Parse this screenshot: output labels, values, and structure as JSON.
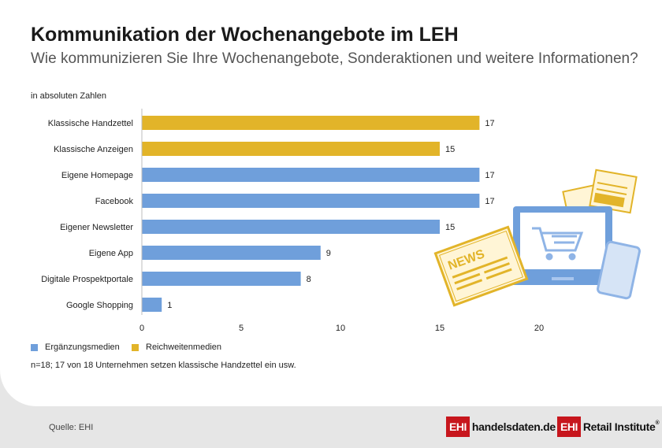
{
  "header": {
    "title": "Kommunikation der Wochenangebote im LEH",
    "subtitle": "Wie kommunizieren Sie Ihre Wochenangebote, Sonderaktionen und weitere Informationen?",
    "unit_label": "in absoluten Zahlen"
  },
  "chart_data": {
    "type": "bar",
    "orientation": "horizontal",
    "categories": [
      "Klassische Handzettel",
      "Klassische Anzeigen",
      "Eigene Homepage",
      "Facebook",
      "Eigener Newsletter",
      "Eigene App",
      "Digitale Prospektportale",
      "Google Shopping"
    ],
    "values": [
      17,
      15,
      17,
      17,
      15,
      9,
      8,
      1
    ],
    "groups": [
      "Reichweitenmedien",
      "Reichweitenmedien",
      "Ergänzungsmedien",
      "Ergänzungsmedien",
      "Ergänzungsmedien",
      "Ergänzungsmedien",
      "Ergänzungsmedien",
      "Ergänzungsmedien"
    ],
    "legend": [
      {
        "name": "Ergänzungsmedien",
        "color": "#6f9fdb"
      },
      {
        "name": "Reichweitenmedien",
        "color": "#e2b429"
      }
    ],
    "xlim": [
      0,
      20
    ],
    "xticks": [
      0,
      5,
      10,
      15,
      20
    ],
    "grid": false,
    "legend_position": "bottom-left"
  },
  "footer": {
    "note": "n=18; 17 von 18 Unternehmen setzen klassische Handzettel ein usw.",
    "source": "Quelle: EHI",
    "logo1": {
      "box": "EHI",
      "text": "handelsdaten.de"
    },
    "logo2": {
      "box": "EHI",
      "text": "Retail Institute",
      "mark": "®"
    }
  },
  "illustration": {
    "newspaper_text": "NEWS",
    "icons": [
      "newspaper-icon",
      "flyer-icon",
      "laptop-icon",
      "shopping-cart-icon",
      "smartphone-icon"
    ]
  }
}
